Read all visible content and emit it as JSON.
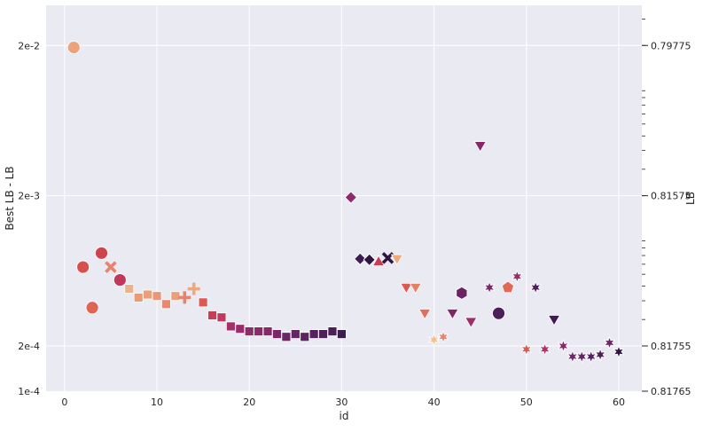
{
  "chart_data": {
    "type": "scatter",
    "title": "",
    "xlabel": "id",
    "ylabel": "Best LB - LB",
    "y2label": "LB",
    "xlim": [
      -2,
      62.5
    ],
    "ylim": [
      0.0001,
      0.037
    ],
    "yscale": "log",
    "x_ticks": [
      {
        "value": 0,
        "label": "0"
      },
      {
        "value": 10,
        "label": "10"
      },
      {
        "value": 20,
        "label": "20"
      },
      {
        "value": 30,
        "label": "30"
      },
      {
        "value": 40,
        "label": "40"
      },
      {
        "value": 50,
        "label": "50"
      },
      {
        "value": 60,
        "label": "60"
      }
    ],
    "y_ticks": [
      {
        "value": 0.02,
        "label": "2e-2"
      },
      {
        "value": 0.002,
        "label": "2e-3"
      },
      {
        "value": 0.0002,
        "label": "2e-4"
      },
      {
        "value": 0.0001,
        "label": "1e-4"
      }
    ],
    "y2_ticks": [
      {
        "value": 0.02,
        "label": "0.79775"
      },
      {
        "value": 0.002,
        "label": "0.81575"
      },
      {
        "value": 0.0002,
        "label": "0.81755"
      },
      {
        "value": 0.0001,
        "label": "0.81765"
      }
    ],
    "grid": true,
    "background": "#eaeaf2",
    "points": [
      {
        "x": 1,
        "y": 0.0194,
        "marker": "circle",
        "color": "#eca37c"
      },
      {
        "x": 2,
        "y": 0.00067,
        "marker": "circle",
        "color": "#d8504e"
      },
      {
        "x": 3,
        "y": 0.00036,
        "marker": "circle",
        "color": "#df6454"
      },
      {
        "x": 4,
        "y": 0.00083,
        "marker": "circle",
        "color": "#cf4350"
      },
      {
        "x": 5,
        "y": 0.00067,
        "marker": "x",
        "color": "#e8836a"
      },
      {
        "x": 6,
        "y": 0.00055,
        "marker": "circle",
        "color": "#c2375c"
      },
      {
        "x": 7,
        "y": 0.00048,
        "marker": "square",
        "color": "#f0b184"
      },
      {
        "x": 8,
        "y": 0.00042,
        "marker": "square",
        "color": "#eb9a76"
      },
      {
        "x": 9,
        "y": 0.00044,
        "marker": "square",
        "color": "#eca079"
      },
      {
        "x": 10,
        "y": 0.00043,
        "marker": "square",
        "color": "#eb9674"
      },
      {
        "x": 11,
        "y": 0.00038,
        "marker": "square",
        "color": "#e8896e"
      },
      {
        "x": 12,
        "y": 0.00043,
        "marker": "square",
        "color": "#ec9f79"
      },
      {
        "x": 13,
        "y": 0.00042,
        "marker": "plus",
        "color": "#e8826c"
      },
      {
        "x": 14,
        "y": 0.00048,
        "marker": "plus",
        "color": "#efa87c"
      },
      {
        "x": 15,
        "y": 0.00039,
        "marker": "square",
        "color": "#dc5950"
      },
      {
        "x": 16,
        "y": 0.00032,
        "marker": "square",
        "color": "#cc3d55"
      },
      {
        "x": 17,
        "y": 0.00031,
        "marker": "square",
        "color": "#c13860"
      },
      {
        "x": 18,
        "y": 0.00027,
        "marker": "square",
        "color": "#a52f68"
      },
      {
        "x": 19,
        "y": 0.00026,
        "marker": "square",
        "color": "#9c2c69"
      },
      {
        "x": 20,
        "y": 0.00025,
        "marker": "square",
        "color": "#922a6a"
      },
      {
        "x": 21,
        "y": 0.00025,
        "marker": "square",
        "color": "#8c296b"
      },
      {
        "x": 22,
        "y": 0.00025,
        "marker": "square",
        "color": "#87286a"
      },
      {
        "x": 23,
        "y": 0.00024,
        "marker": "square",
        "color": "#7d2769"
      },
      {
        "x": 24,
        "y": 0.00023,
        "marker": "square",
        "color": "#6b2466"
      },
      {
        "x": 25,
        "y": 0.00024,
        "marker": "square",
        "color": "#652464"
      },
      {
        "x": 26,
        "y": 0.00023,
        "marker": "square",
        "color": "#5f2362"
      },
      {
        "x": 27,
        "y": 0.00024,
        "marker": "square",
        "color": "#55225e"
      },
      {
        "x": 28,
        "y": 0.00024,
        "marker": "square",
        "color": "#4d205a"
      },
      {
        "x": 29,
        "y": 0.00025,
        "marker": "square",
        "color": "#4a1f58"
      },
      {
        "x": 30,
        "y": 0.00024,
        "marker": "square",
        "color": "#3d1c50"
      },
      {
        "x": 31,
        "y": 0.00195,
        "marker": "diamond",
        "color": "#8c2a6b"
      },
      {
        "x": 32,
        "y": 0.00076,
        "marker": "diamond",
        "color": "#3f1c52"
      },
      {
        "x": 33,
        "y": 0.00075,
        "marker": "diamond",
        "color": "#2d1741"
      },
      {
        "x": 34,
        "y": 0.00073,
        "marker": "triangle-up",
        "color": "#cc3d55"
      },
      {
        "x": 35,
        "y": 0.00077,
        "marker": "x",
        "color": "#2d1741"
      },
      {
        "x": 36,
        "y": 0.00076,
        "marker": "triangle-down",
        "color": "#efaa7c"
      },
      {
        "x": 37,
        "y": 0.00049,
        "marker": "triangle-down",
        "color": "#dc5950"
      },
      {
        "x": 38,
        "y": 0.00049,
        "marker": "triangle-down",
        "color": "#e58066"
      },
      {
        "x": 39,
        "y": 0.00033,
        "marker": "triangle-down",
        "color": "#e36f5b"
      },
      {
        "x": 40,
        "y": 0.00022,
        "marker": "star",
        "color": "#f3c190"
      },
      {
        "x": 41,
        "y": 0.00023,
        "marker": "star",
        "color": "#e8856c"
      },
      {
        "x": 42,
        "y": 0.00033,
        "marker": "triangle-down",
        "color": "#7d2769"
      },
      {
        "x": 43,
        "y": 0.00045,
        "marker": "hexagon",
        "color": "#6a2465"
      },
      {
        "x": 44,
        "y": 0.00029,
        "marker": "triangle-down",
        "color": "#9f2d68"
      },
      {
        "x": 45,
        "y": 0.0043,
        "marker": "triangle-down",
        "color": "#882869"
      },
      {
        "x": 46,
        "y": 0.00049,
        "marker": "star",
        "color": "#7a2769"
      },
      {
        "x": 47,
        "y": 0.00033,
        "marker": "circle",
        "color": "#4c1f59"
      },
      {
        "x": 48,
        "y": 0.00049,
        "marker": "pentagon",
        "color": "#e06a56"
      },
      {
        "x": 49,
        "y": 0.00058,
        "marker": "star",
        "color": "#9a2c69"
      },
      {
        "x": 50,
        "y": 0.00019,
        "marker": "star",
        "color": "#db5a50"
      },
      {
        "x": 51,
        "y": 0.00049,
        "marker": "star",
        "color": "#4e205a"
      },
      {
        "x": 52,
        "y": 0.00019,
        "marker": "star",
        "color": "#af3365"
      },
      {
        "x": 53,
        "y": 0.0003,
        "marker": "triangle-down",
        "color": "#3d1c50"
      },
      {
        "x": 54,
        "y": 0.0002,
        "marker": "star",
        "color": "#8c2a6b"
      },
      {
        "x": 55,
        "y": 0.00017,
        "marker": "star",
        "color": "#722667"
      },
      {
        "x": 56,
        "y": 0.00017,
        "marker": "star",
        "color": "#632464"
      },
      {
        "x": 57,
        "y": 0.00017,
        "marker": "star",
        "color": "#552260"
      },
      {
        "x": 58,
        "y": 0.000175,
        "marker": "star",
        "color": "#4b2059"
      },
      {
        "x": 59,
        "y": 0.00021,
        "marker": "star",
        "color": "#712566"
      },
      {
        "x": 60,
        "y": 0.000183,
        "marker": "star",
        "color": "#2d1741"
      }
    ]
  }
}
